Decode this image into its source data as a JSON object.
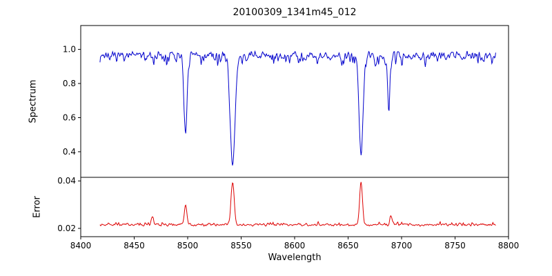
{
  "figure": {
    "title": "20100309_1341m45_012",
    "xlabel": "Wavelength",
    "ylabel_top": "Spectrum",
    "ylabel_bottom": "Error",
    "background_color": "#ffffff",
    "axis_color": "#000000"
  },
  "chart_data": {
    "type": "line",
    "title": "20100309_1341m45_012",
    "xlabel": "Wavelength",
    "grid": false,
    "legend": null,
    "xlim": [
      8400,
      8800
    ],
    "x_data_range": [
      8418,
      8788
    ],
    "x_ticks": [
      8400,
      8450,
      8500,
      8550,
      8600,
      8650,
      8700,
      8750,
      8800
    ],
    "x_tick_labels": [
      "8400",
      "8450",
      "8500",
      "8550",
      "8600",
      "8650",
      "8700",
      "8750",
      "8800"
    ],
    "subplots": [
      {
        "name": "spectrum",
        "kind": "spectrum",
        "ylabel": "Spectrum",
        "color": "#0000cc",
        "ylim": [
          0.25,
          1.14
        ],
        "y_ticks": [
          0.4,
          0.6,
          0.8,
          1.0
        ],
        "y_tick_labels": [
          "0.4",
          "0.6",
          "0.8",
          "1.0"
        ],
        "continuum": 0.965,
        "noise_sigma": 0.022,
        "spike_depth": 0.11,
        "spike_prob": 0.13,
        "absorption_lines": [
          {
            "center": 8498.0,
            "depth": 0.5,
            "width": 1.3
          },
          {
            "center": 8542.1,
            "depth": 0.66,
            "width": 2.2
          },
          {
            "center": 8662.1,
            "depth": 0.6,
            "width": 1.8
          },
          {
            "center": 8688.0,
            "depth": 0.3,
            "width": 1.0
          }
        ],
        "n_points": 720,
        "seed": 7
      },
      {
        "name": "error",
        "kind": "error",
        "ylabel": "Error",
        "color": "#dd0000",
        "ylim": [
          0.0165,
          0.0415
        ],
        "y_ticks": [
          0.02,
          0.04
        ],
        "y_tick_labels": [
          "0.02",
          "0.04"
        ],
        "baseline": 0.0215,
        "noise_sigma": 0.0005,
        "spike_height": 0.0025,
        "spike_prob": 0.08,
        "peaks": [
          {
            "center": 8467.0,
            "height": 0.0035,
            "width": 0.9
          },
          {
            "center": 8498.0,
            "height": 0.0085,
            "width": 1.1
          },
          {
            "center": 8542.1,
            "height": 0.0185,
            "width": 1.4
          },
          {
            "center": 8662.1,
            "height": 0.0185,
            "width": 1.3
          },
          {
            "center": 8690.0,
            "height": 0.004,
            "width": 0.9
          }
        ],
        "n_points": 720,
        "seed": 99
      }
    ]
  }
}
